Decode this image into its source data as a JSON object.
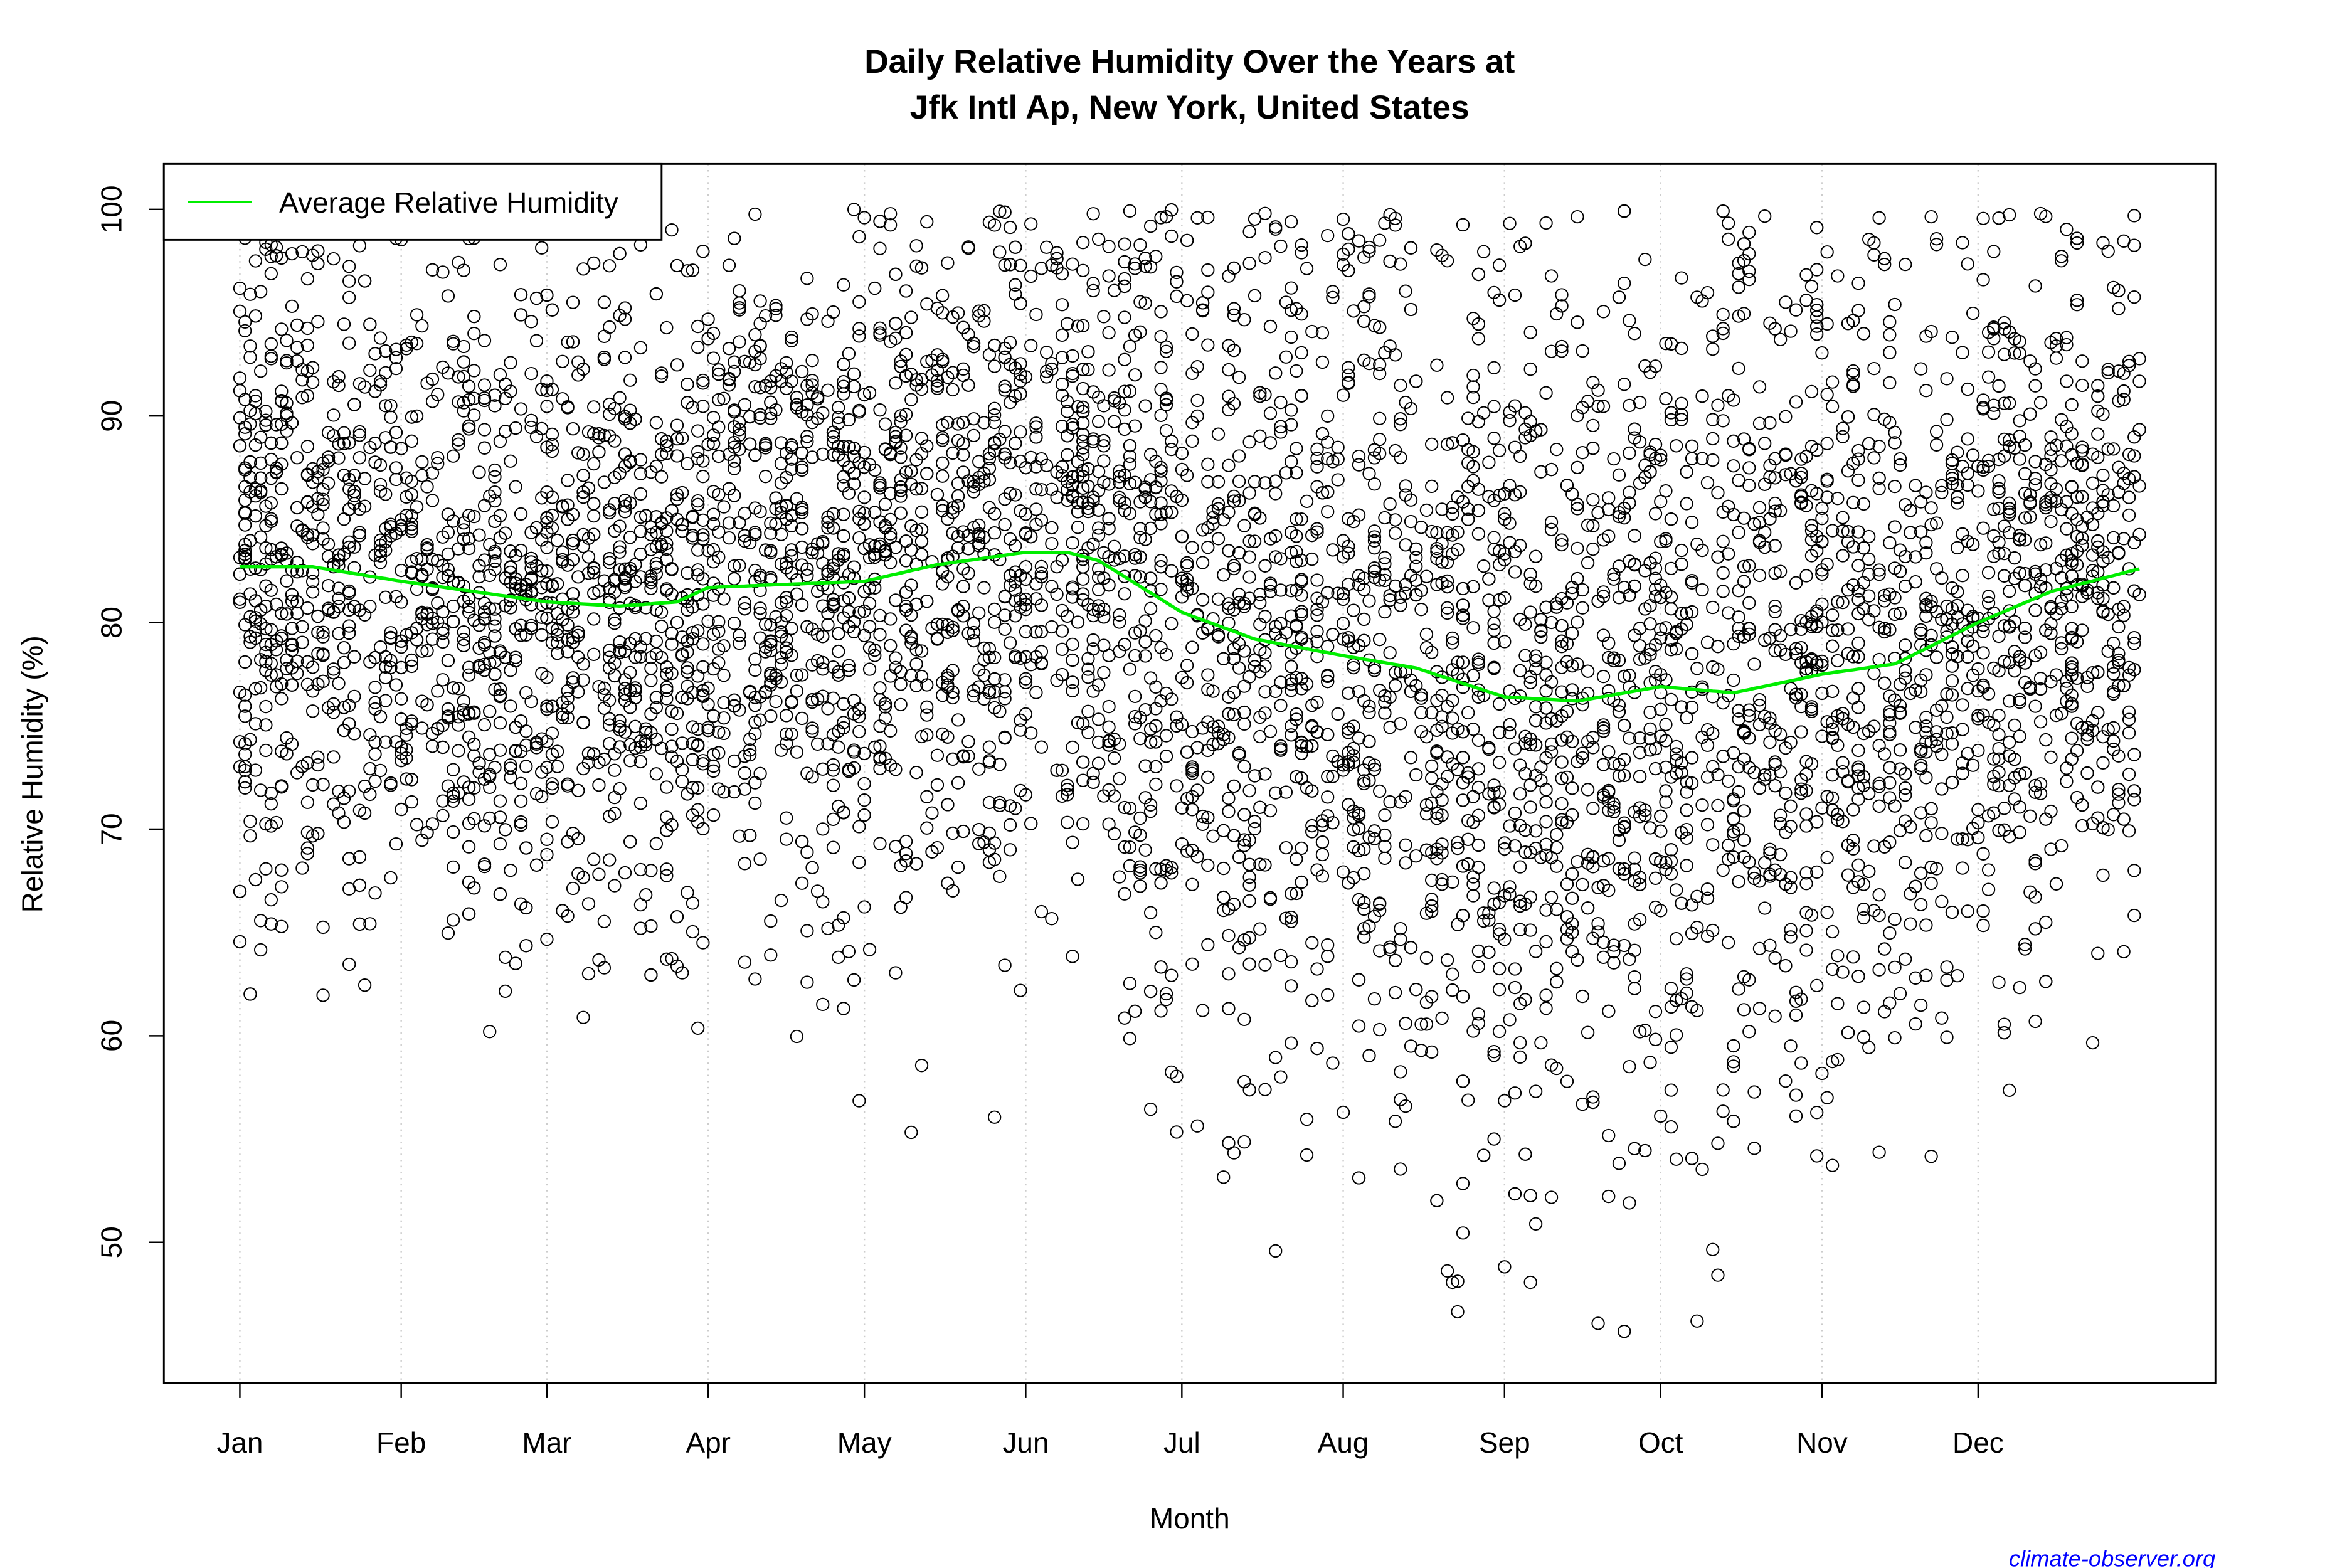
{
  "chart_data": {
    "type": "scatter",
    "title_line1": "Daily Relative Humidity Over the Years at",
    "title_line2": "Jfk Intl Ap, New York, United States",
    "xlabel": "Month",
    "ylabel": "Relative Humidity  (%)",
    "x_tick_labels": [
      "Jan",
      "Feb",
      "Mar",
      "Apr",
      "May",
      "Jun",
      "Jul",
      "Aug",
      "Sep",
      "Oct",
      "Nov",
      "Dec"
    ],
    "x_tick_days": [
      1,
      32,
      60,
      91,
      121,
      152,
      182,
      213,
      244,
      274,
      305,
      335
    ],
    "y_ticks": [
      50,
      60,
      70,
      80,
      90,
      100
    ],
    "ylim": [
      43.2,
      102.2
    ],
    "xlim_days": [
      -13.6,
      380.6
    ],
    "grid": "vertical dotted at month ticks",
    "legend": {
      "position": "top-left",
      "entries": [
        {
          "label": "Average Relative Humidity",
          "color": "#00ee00"
        }
      ]
    },
    "average_series": {
      "name": "Average Relative Humidity",
      "color": "#00ee00",
      "day": [
        1,
        15,
        32,
        46,
        60,
        74,
        85,
        91,
        121,
        135,
        152,
        160,
        166,
        182,
        196,
        213,
        227,
        244,
        258,
        274,
        288,
        305,
        319,
        335,
        349,
        366
      ],
      "value": [
        82.7,
        82.7,
        82.0,
        81.5,
        81.0,
        80.8,
        81.0,
        81.7,
        82.0,
        82.8,
        83.4,
        83.4,
        83.0,
        80.5,
        79.2,
        78.4,
        77.8,
        76.4,
        76.2,
        76.9,
        76.6,
        77.5,
        78.0,
        80.0,
        81.5,
        82.6
      ]
    },
    "scatter_note_range": [
      45,
      100
    ],
    "point_style": "open black circles"
  },
  "footer": {
    "credit": "climate-observer.org",
    "credit_color": "#0000ff"
  }
}
